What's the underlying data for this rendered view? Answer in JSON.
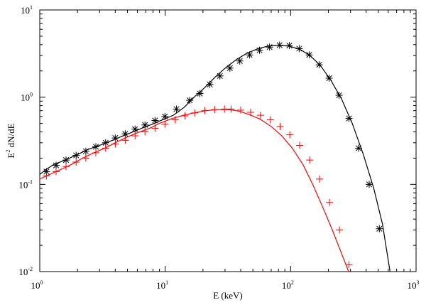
{
  "chart_data": {
    "type": "line",
    "xscale": "log",
    "yscale": "log",
    "xlim": [
      1,
      1000
    ],
    "ylim": [
      0.01,
      10
    ],
    "xlabel": "E (keV)",
    "ylabel_main": "E",
    "ylabel_sup": "2",
    "ylabel_rest": " dN/dE",
    "grid": false,
    "x_ticks": [
      {
        "base": "10",
        "exp": "0"
      },
      {
        "base": "10",
        "exp": "1"
      },
      {
        "base": "10",
        "exp": "2"
      },
      {
        "base": "10",
        "exp": "3"
      }
    ],
    "y_ticks": [
      {
        "base": "10",
        "exp": "-2"
      },
      {
        "base": "10",
        "exp": "-1"
      },
      {
        "base": "10",
        "exp": "0"
      },
      {
        "base": "10",
        "exp": "1"
      }
    ],
    "series": [
      {
        "color": "#000000",
        "marker": "asterisk",
        "x": [
          1.0,
          1.1,
          1.3,
          1.6,
          2.0,
          2.4,
          3.0,
          3.6,
          4.4,
          5.3,
          6.5,
          7.9,
          9.5,
          11.6,
          14.1,
          17.0,
          20.8,
          25.0,
          30.6,
          37.0,
          45.0,
          55.0,
          66.0,
          80.0,
          97.0,
          118.0,
          143.0,
          173.0,
          210.0,
          255.0,
          310.0,
          380.0,
          460.0,
          540.0,
          620.0
        ],
        "y": [
          0.13,
          0.145,
          0.17,
          0.19,
          0.22,
          0.25,
          0.28,
          0.31,
          0.35,
          0.39,
          0.44,
          0.49,
          0.55,
          0.62,
          0.76,
          1.0,
          1.3,
          1.7,
          2.2,
          2.7,
          3.2,
          3.6,
          3.85,
          3.95,
          3.85,
          3.55,
          3.0,
          2.3,
          1.55,
          0.95,
          0.5,
          0.22,
          0.09,
          0.035,
          0.01
        ],
        "marker_x": [
          1.13,
          1.35,
          1.62,
          1.95,
          2.33,
          2.8,
          3.35,
          4.0,
          4.8,
          5.75,
          6.9,
          8.3,
          9.95,
          12.3,
          15.7,
          18.9,
          22.7,
          27.3,
          32.8,
          39.3,
          47.1,
          56.5,
          67.9,
          81.6,
          97.6,
          117.0,
          140.6,
          169.0,
          202.8,
          243.3,
          292.0,
          348.0,
          423.0,
          510.0
        ],
        "marker_y": [
          0.14,
          0.165,
          0.19,
          0.215,
          0.24,
          0.27,
          0.3,
          0.34,
          0.38,
          0.43,
          0.48,
          0.54,
          0.6,
          0.73,
          0.92,
          1.1,
          1.4,
          1.75,
          2.15,
          2.6,
          3.05,
          3.45,
          3.75,
          3.95,
          3.9,
          3.6,
          3.05,
          2.35,
          1.65,
          1.05,
          0.57,
          0.26,
          0.1,
          0.031
        ]
      },
      {
        "color": "#ff0000",
        "marker": "plus",
        "x": [
          1.0,
          1.2,
          1.5,
          1.8,
          2.2,
          2.7,
          3.3,
          4.0,
          5.0,
          6.0,
          7.5,
          9.0,
          11.0,
          14.0,
          17.0,
          21.0,
          26.0,
          32.0,
          39.0,
          47.0,
          57.0,
          70.0,
          85.0,
          103.0,
          125.0,
          150.0,
          180.0,
          215.0,
          255.0,
          290.0,
          310.0
        ],
        "y": [
          0.115,
          0.13,
          0.15,
          0.17,
          0.2,
          0.23,
          0.26,
          0.3,
          0.35,
          0.39,
          0.44,
          0.5,
          0.56,
          0.62,
          0.66,
          0.7,
          0.72,
          0.72,
          0.69,
          0.63,
          0.56,
          0.46,
          0.36,
          0.26,
          0.17,
          0.1,
          0.055,
          0.03,
          0.016,
          0.01,
          0.008
        ],
        "marker_x": [
          1.13,
          1.35,
          1.62,
          1.95,
          2.33,
          2.8,
          3.35,
          4.0,
          4.8,
          5.75,
          6.9,
          8.3,
          9.95,
          12.0,
          14.4,
          17.2,
          20.7,
          24.8,
          29.7,
          33.5,
          40.0,
          48.0,
          57.5,
          69.0,
          82.5,
          98.5,
          118.0,
          142.0,
          170.0,
          204.0,
          245.0,
          292.0
        ],
        "marker_y": [
          0.125,
          0.14,
          0.16,
          0.18,
          0.2,
          0.23,
          0.26,
          0.29,
          0.32,
          0.36,
          0.4,
          0.44,
          0.49,
          0.55,
          0.61,
          0.66,
          0.7,
          0.72,
          0.73,
          0.73,
          0.71,
          0.67,
          0.62,
          0.55,
          0.46,
          0.37,
          0.28,
          0.19,
          0.115,
          0.062,
          0.03,
          0.012
        ]
      }
    ]
  }
}
